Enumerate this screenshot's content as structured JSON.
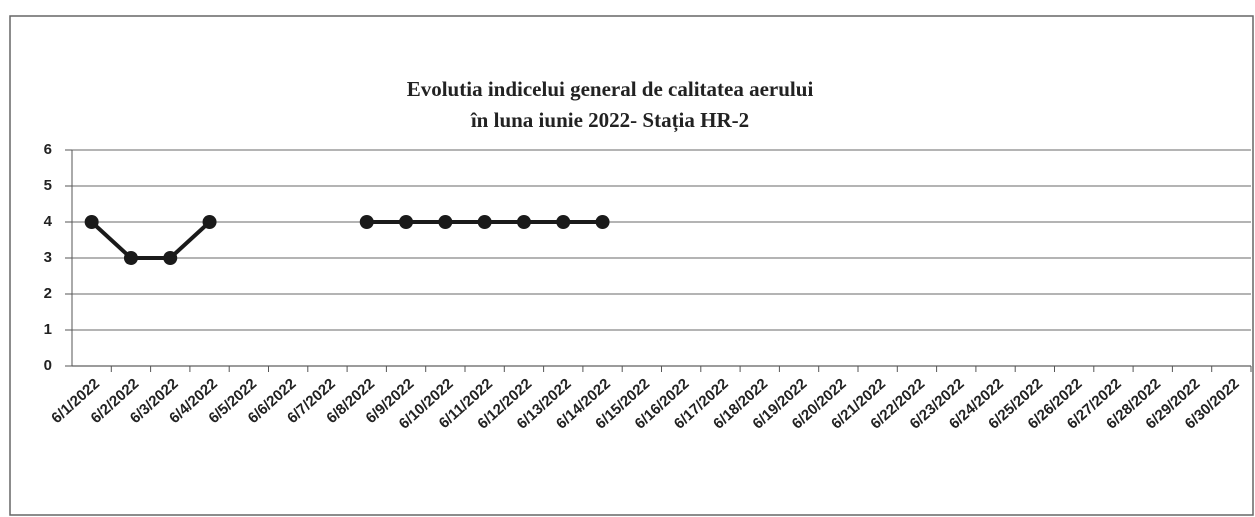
{
  "chart_data": {
    "type": "line",
    "title": "Evolutia indicelui  general de calitatea aerului",
    "subtitle": "în luna iunie 2022- Stația HR-2",
    "categories": [
      "6/1/2022",
      "6/2/2022",
      "6/3/2022",
      "6/4/2022",
      "6/5/2022",
      "6/6/2022",
      "6/7/2022",
      "6/8/2022",
      "6/9/2022",
      "6/10/2022",
      "6/11/2022",
      "6/12/2022",
      "6/13/2022",
      "6/14/2022",
      "6/15/2022",
      "6/16/2022",
      "6/17/2022",
      "6/18/2022",
      "6/19/2022",
      "6/20/2022",
      "6/21/2022",
      "6/22/2022",
      "6/23/2022",
      "6/24/2022",
      "6/25/2022",
      "6/26/2022",
      "6/27/2022",
      "6/28/2022",
      "6/29/2022",
      "6/30/2022"
    ],
    "values": [
      4,
      3,
      3,
      4,
      null,
      null,
      null,
      4,
      4,
      4,
      4,
      4,
      4,
      4,
      null,
      null,
      null,
      null,
      null,
      null,
      null,
      null,
      null,
      null,
      null,
      null,
      null,
      null,
      null,
      null
    ],
    "color": "#1a1a1a",
    "ylim": [
      0,
      6
    ],
    "yticks": [
      0,
      1,
      2,
      3,
      4,
      5,
      6
    ],
    "grid": true
  }
}
